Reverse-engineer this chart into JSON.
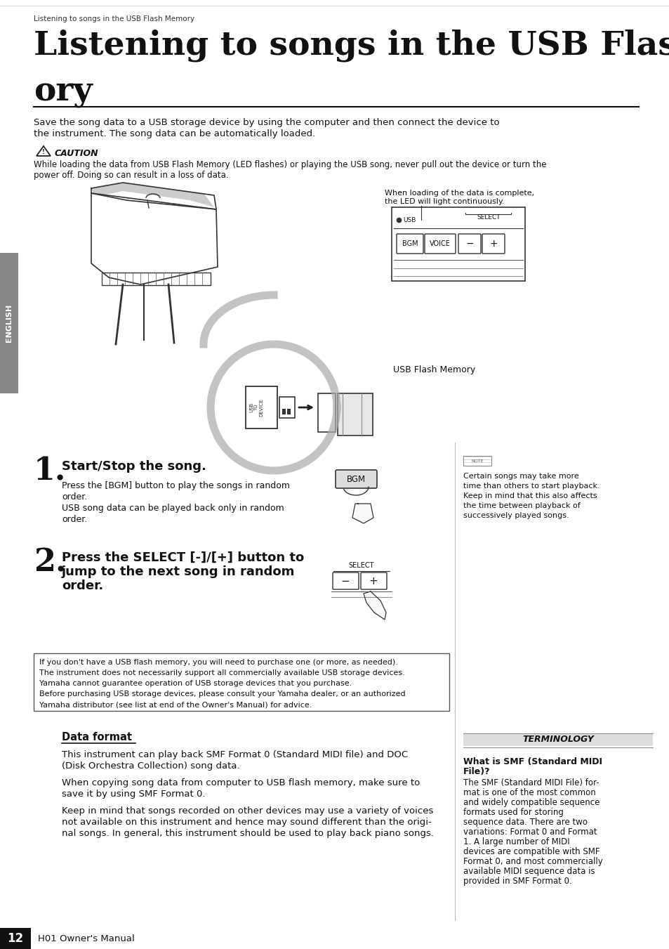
{
  "page_header": "Listening to songs in the USB Flash Memory",
  "title_line1": "Listening to songs in the USB Flash Mem-",
  "title_line2": "ory",
  "intro_text_1": "Save the song data to a USB storage device by using the computer and then connect the device to",
  "intro_text_2": "the instrument. The song data can be automatically loaded.",
  "caution_header": "CAUTION",
  "caution_text_1": "While loading the data from USB Flash Memory (LED flashes) or playing the USB song, never pull out the device or turn the",
  "caution_text_2": "power off. Doing so can result in a loss of data.",
  "led_note_1": "When loading of the data is complete,",
  "led_note_2": "the LED will light continuously.",
  "usb_flash_memory_label": "USB Flash Memory",
  "english_label": "ENGLISH",
  "step1_number": "1.",
  "step1_title": "Start/Stop the song.",
  "step1_body": [
    "Press the [BGM] button to play the songs in random",
    "order.",
    "USB song data can be played back only in random",
    "order."
  ],
  "step2_number": "2.",
  "step2_title_1": "Press the SELECT [-]/[+] button to",
  "step2_title_2": "jump to the next song in random",
  "step2_title_3": "order.",
  "note_text": [
    "Certain songs may take more",
    "time than others to start playback.",
    "Keep in mind that this also affects",
    "the time between playback of",
    "successively played songs."
  ],
  "box_lines": [
    "If you don't have a USB flash memory, you will need to purchase one (or more, as needed).",
    "The instrument does not necessarily support all commercially available USB storage devices.",
    "Yamaha cannot guarantee operation of USB storage devices that you purchase.",
    "Before purchasing USB storage devices, please consult your Yamaha dealer, or an authorized",
    "Yamaha distributor (see list at end of the Owner's Manual) for advice."
  ],
  "data_format_title": "Data format",
  "df_text": [
    "This instrument can play back SMF Format 0 (Standard MIDI file) and DOC",
    "(Disk Orchestra Collection) song data.",
    "",
    "When copying song data from computer to USB flash memory, make sure to",
    "save it by using SMF Format 0.",
    "",
    "Keep in mind that songs recorded on other devices may use a variety of voices",
    "not available on this instrument and hence may sound different than the origi-",
    "nal songs. In general, this instrument should be used to play back piano songs."
  ],
  "terminology_title": "TERMINOLOGY",
  "term_subtitle_1": "What is SMF (Standard MIDI",
  "term_subtitle_2": "File)?",
  "term_text": [
    "The SMF (Standard MIDI File) for-",
    "mat is one of the most common",
    "and widely compatible sequence",
    "formats used for storing",
    "sequence data. There are two",
    "variations: Format 0 and Format",
    "1. A large number of MIDI",
    "devices are compatible with SMF",
    "Format 0, and most commercially",
    "available MIDI sequence data is",
    "provided in SMF Format 0."
  ],
  "page_number": "12",
  "manual_title": "H01 Owner's Manual",
  "bg_color": "#ffffff",
  "sidebar_gray": "#808080"
}
